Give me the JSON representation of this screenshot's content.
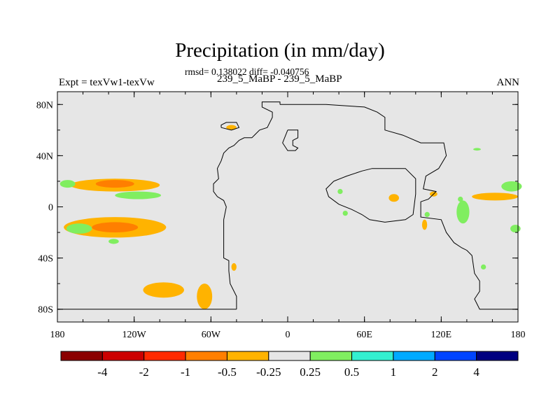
{
  "header": {
    "title": "Precipitation (in mm/day)",
    "stats": "rmsd= 0.138022 diff= -0.040756",
    "experiment": "Expt = texVw1-texVw",
    "case": "239_5_MaBP - 239_5_MaBP",
    "season": "ANN"
  },
  "chart_data": {
    "type": "filled-contour-map",
    "title": "Precipitation (in mm/day)",
    "variable": "Precipitation difference",
    "units": "mm/day",
    "xlim": [
      -180,
      180
    ],
    "ylim": [
      -90,
      90
    ],
    "x_ticks": [
      {
        "value": -180,
        "label": "180"
      },
      {
        "value": -120,
        "label": "120W"
      },
      {
        "value": -60,
        "label": "60W"
      },
      {
        "value": 0,
        "label": "0"
      },
      {
        "value": 60,
        "label": "60E"
      },
      {
        "value": 120,
        "label": "120E"
      },
      {
        "value": 180,
        "label": "180"
      }
    ],
    "y_ticks": [
      {
        "value": 80,
        "label": "80N"
      },
      {
        "value": 40,
        "label": "40N"
      },
      {
        "value": 0,
        "label": "0"
      },
      {
        "value": -40,
        "label": "40S"
      },
      {
        "value": -80,
        "label": "80S"
      }
    ],
    "colorbar": {
      "levels": [
        "-4",
        "-2",
        "-1",
        "-0.5",
        "-0.25",
        "0.25",
        "0.5",
        "1",
        "2",
        "4"
      ],
      "colors": [
        "#8b0000",
        "#cc0000",
        "#ff2a00",
        "#ff7f00",
        "#ffb300",
        "#e6e6e6",
        "#80ee60",
        "#33f0d0",
        "#00aaff",
        "#0044ff",
        "#000080"
      ]
    },
    "regions": [
      {
        "name": "north-pacific-orange",
        "bin": 4,
        "lon": -135,
        "lat": 17,
        "dlon": 35,
        "dlat": 5
      },
      {
        "name": "north-pacific-red",
        "bin": 3,
        "lon": -135,
        "lat": 18,
        "dlon": 15,
        "dlat": 3
      },
      {
        "name": "north-pacific-green",
        "bin": 6,
        "lon": -117,
        "lat": 9,
        "dlon": 18,
        "dlat": 3
      },
      {
        "name": "west-pacific-green",
        "bin": 6,
        "lon": -172,
        "lat": 18,
        "dlon": 6,
        "dlat": 3
      },
      {
        "name": "south-pacific-orange",
        "bin": 4,
        "lon": -135,
        "lat": -16,
        "dlon": 40,
        "dlat": 8
      },
      {
        "name": "south-pacific-red",
        "bin": 3,
        "lon": -135,
        "lat": -16,
        "dlon": 18,
        "dlat": 4
      },
      {
        "name": "south-pacific-green",
        "bin": 6,
        "lon": -163,
        "lat": -17,
        "dlon": 10,
        "dlat": 4
      },
      {
        "name": "south-pacific-green-2",
        "bin": 6,
        "lon": -136,
        "lat": -27,
        "dlon": 4,
        "dlat": 2
      },
      {
        "name": "southern-ocean-orange",
        "bin": 4,
        "lon": -97,
        "lat": -65,
        "dlon": 16,
        "dlat": 6
      },
      {
        "name": "southern-ocean-orange-2",
        "bin": 4,
        "lon": -65,
        "lat": -70,
        "dlon": 6,
        "dlat": 10
      },
      {
        "name": "chile-coast-orange",
        "bin": 4,
        "lon": -42,
        "lat": -47,
        "dlon": 2,
        "dlat": 3
      },
      {
        "name": "greenland-orange",
        "bin": 4,
        "lon": -44,
        "lat": 62,
        "dlon": 4,
        "dlat": 2
      },
      {
        "name": "africa-green",
        "bin": 6,
        "lon": 41,
        "lat": 12,
        "dlon": 2,
        "dlat": 2
      },
      {
        "name": "africa-green-2",
        "bin": 6,
        "lon": 45,
        "lat": -5,
        "dlon": 2,
        "dlat": 2
      },
      {
        "name": "arabia-orange",
        "bin": 4,
        "lon": 83,
        "lat": 7,
        "dlon": 4,
        "dlat": 3
      },
      {
        "name": "india-orange",
        "bin": 4,
        "lon": 107,
        "lat": -14,
        "dlon": 2,
        "dlat": 4
      },
      {
        "name": "india-orange-2",
        "bin": 4,
        "lon": 114,
        "lat": 10,
        "dlon": 3,
        "dlat": 2
      },
      {
        "name": "indian-ocean-green",
        "bin": 6,
        "lon": 109,
        "lat": -6,
        "dlon": 2,
        "dlat": 2
      },
      {
        "name": "east-indian-green",
        "bin": 6,
        "lon": 137,
        "lat": -4,
        "dlon": 5,
        "dlat": 9
      },
      {
        "name": "east-indian-green-2",
        "bin": 6,
        "lon": 135,
        "lat": 6,
        "dlon": 2,
        "dlat": 2
      },
      {
        "name": "east-pacific-orange",
        "bin": 4,
        "lon": 162,
        "lat": 8,
        "dlon": 18,
        "dlat": 3
      },
      {
        "name": "east-pacific-green",
        "bin": 6,
        "lon": 175,
        "lat": 16,
        "dlon": 8,
        "dlat": 4
      },
      {
        "name": "east-pacific-green-2",
        "bin": 6,
        "lon": 178,
        "lat": -17,
        "dlon": 4,
        "dlat": 3
      },
      {
        "name": "south-pacific-east-green",
        "bin": 6,
        "lon": 153,
        "lat": -47,
        "dlon": 2,
        "dlat": 2
      },
      {
        "name": "north-green-small",
        "bin": 6,
        "lon": 148,
        "lat": 45,
        "dlon": 3,
        "dlat": 1
      }
    ],
    "coastlines": {
      "americas": [
        [
          -40,
          -80
        ],
        [
          -40,
          -70
        ],
        [
          -45,
          -60
        ],
        [
          -46,
          -50
        ],
        [
          -46,
          -42
        ],
        [
          -50,
          -40
        ],
        [
          -50,
          -30
        ],
        [
          -50,
          -20
        ],
        [
          -50,
          -10
        ],
        [
          -48,
          0
        ],
        [
          -50,
          5
        ],
        [
          -55,
          8
        ],
        [
          -58,
          12
        ],
        [
          -58,
          18
        ],
        [
          -54,
          22
        ],
        [
          -55,
          30
        ],
        [
          -52,
          36
        ],
        [
          -50,
          42
        ],
        [
          -46,
          46
        ],
        [
          -42,
          48
        ],
        [
          -38,
          52
        ],
        [
          -34,
          54
        ],
        [
          -28,
          54
        ],
        [
          -26,
          56
        ],
        [
          -22,
          60
        ],
        [
          -16,
          62
        ],
        [
          -12,
          70
        ],
        [
          -12,
          74
        ],
        [
          -20,
          78
        ],
        [
          -20,
          82
        ],
        [
          -6,
          82
        ],
        [
          -6,
          80
        ]
      ],
      "greenland": [
        [
          -52,
          62
        ],
        [
          -52,
          64
        ],
        [
          -48,
          66
        ],
        [
          -40,
          66
        ],
        [
          -38,
          62
        ],
        [
          -44,
          60
        ],
        [
          -52,
          62
        ]
      ],
      "eurasia": [
        [
          -6,
          80
        ],
        [
          30,
          80
        ],
        [
          60,
          78
        ],
        [
          70,
          74
        ],
        [
          76,
          70
        ],
        [
          76,
          60
        ],
        [
          90,
          56
        ],
        [
          104,
          50
        ],
        [
          122,
          50
        ],
        [
          124,
          40
        ],
        [
          118,
          30
        ],
        [
          108,
          24
        ],
        [
          106,
          14
        ],
        [
          116,
          12
        ],
        [
          110,
          6
        ],
        [
          104,
          4
        ],
        [
          104,
          -8
        ],
        [
          120,
          -10
        ],
        [
          124,
          -20
        ],
        [
          130,
          -28
        ],
        [
          136,
          -32
        ],
        [
          140,
          -34
        ],
        [
          144,
          -38
        ],
        [
          146,
          -52
        ],
        [
          150,
          -58
        ],
        [
          150,
          -66
        ],
        [
          146,
          -72
        ],
        [
          150,
          -80
        ],
        [
          180,
          -80
        ]
      ],
      "inner_loop": [
        [
          36,
          20
        ],
        [
          46,
          24
        ],
        [
          58,
          28
        ],
        [
          66,
          30
        ],
        [
          76,
          30
        ],
        [
          92,
          30
        ],
        [
          100,
          22
        ],
        [
          100,
          10
        ],
        [
          98,
          -6
        ],
        [
          92,
          -10
        ],
        [
          76,
          -12
        ],
        [
          64,
          -10
        ],
        [
          58,
          -6
        ],
        [
          50,
          -2
        ],
        [
          40,
          2
        ],
        [
          32,
          8
        ],
        [
          30,
          14
        ],
        [
          36,
          20
        ]
      ],
      "europe_peninsula": [
        [
          0,
          60
        ],
        [
          8,
          60
        ],
        [
          8,
          54
        ],
        [
          4,
          52
        ],
        [
          4,
          48
        ],
        [
          8,
          46
        ],
        [
          6,
          44
        ],
        [
          0,
          44
        ],
        [
          -4,
          50
        ],
        [
          0,
          60
        ]
      ],
      "antarctica": [
        [
          -180,
          -80
        ],
        [
          -40,
          -80
        ]
      ]
    }
  }
}
